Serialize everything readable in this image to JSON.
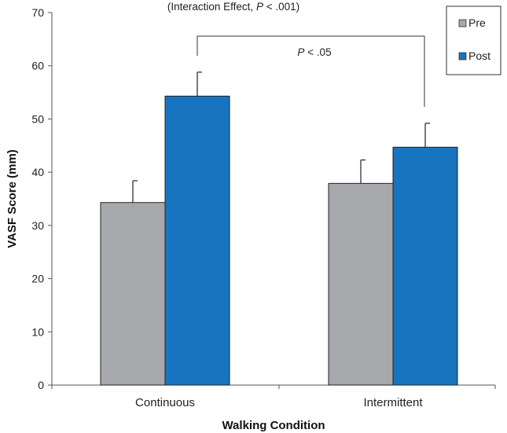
{
  "chart_data": {
    "type": "bar",
    "title": "",
    "categories": [
      "Continuous",
      "Intermittent"
    ],
    "series": [
      {
        "name": "Pre",
        "color": "#a7a8ab",
        "values": [
          34.3,
          37.9
        ],
        "errors": [
          4.1,
          4.4
        ]
      },
      {
        "name": "Post",
        "color": "#1874bf",
        "values": [
          54.3,
          44.7
        ],
        "errors": [
          4.5,
          4.5
        ]
      }
    ],
    "xlabel": "Walking Condition",
    "ylabel": "VASF Score (mm)",
    "ylim": [
      0,
      70
    ],
    "yticks": [
      0,
      10,
      20,
      30,
      40,
      50,
      60,
      70
    ],
    "legend_position": "top-right",
    "annotations": {
      "interaction": {
        "prefix": "(Interaction Effect, ",
        "p": "P",
        "suffix": " < .001)"
      },
      "comparison": {
        "p": "P",
        "suffix": " < .05"
      }
    }
  }
}
